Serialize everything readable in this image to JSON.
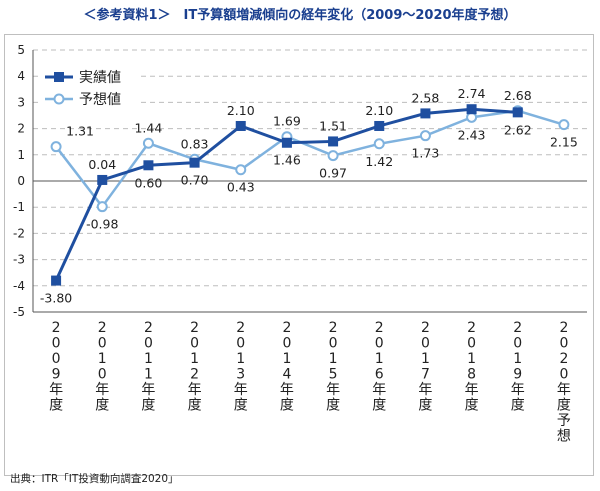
{
  "title": "＜参考資料1＞　IT予算額増減傾向の経年変化（2009～2020年度予想）",
  "source": "出典：ITR「IT投資動向調査2020」",
  "chart_data": {
    "type": "line",
    "categories": [
      "2009年度",
      "2010年度",
      "2011年度",
      "2012年度",
      "2013年度",
      "2014年度",
      "2015年度",
      "2016年度",
      "2017年度",
      "2018年度",
      "2019年度",
      "2020年度予想"
    ],
    "ylim": [
      -5,
      5
    ],
    "yticks": [
      "5",
      "4",
      "3",
      "2",
      "1",
      "0",
      "-1",
      "-2",
      "-3",
      "-4",
      "-5"
    ],
    "grid": true,
    "legend_position": "top-left",
    "series": [
      {
        "name": "実績値",
        "color": "#1f4fa0",
        "marker": "square",
        "values": [
          -3.8,
          0.04,
          0.6,
          0.7,
          2.1,
          1.46,
          1.51,
          2.1,
          2.58,
          2.74,
          2.62,
          null
        ],
        "labels": [
          "-3.80",
          "0.04",
          "0.60",
          "0.70",
          "2.10",
          "1.46",
          "1.51",
          "2.10",
          "2.58",
          "2.74",
          "2.62",
          ""
        ]
      },
      {
        "name": "予想値",
        "color": "#7fb2de",
        "marker": "circle",
        "values": [
          1.31,
          -0.98,
          1.44,
          0.83,
          0.43,
          1.69,
          0.97,
          1.42,
          1.73,
          2.43,
          2.68,
          2.15
        ],
        "labels": [
          "1.31",
          "-0.98",
          "1.44",
          "0.83",
          "0.43",
          "1.69",
          "0.97",
          "1.42",
          "1.73",
          "2.43",
          "2.68",
          "2.15"
        ]
      }
    ]
  }
}
